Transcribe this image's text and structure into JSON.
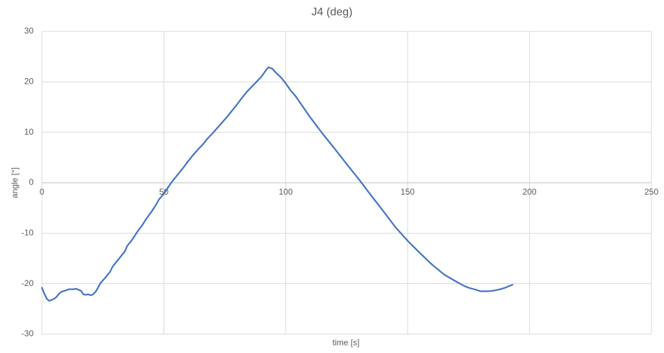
{
  "chart_data": {
    "type": "line",
    "title": "J4 (deg)",
    "x_label": "time [s]",
    "y_label": "angle [°]",
    "x": [
      0,
      1,
      2,
      3,
      5,
      6,
      7,
      8,
      10,
      11,
      13,
      14,
      15,
      16,
      17,
      18,
      19,
      20,
      21,
      22,
      23,
      24,
      26,
      28,
      29,
      30,
      32,
      34,
      35,
      37,
      39,
      41,
      43,
      45,
      47,
      48,
      50,
      53,
      56,
      58,
      60,
      62,
      64,
      66,
      68,
      70,
      72,
      74,
      76,
      78,
      80,
      82,
      84,
      86,
      88,
      90,
      92,
      93,
      94.5,
      96,
      98,
      100,
      102,
      104,
      106,
      108,
      110,
      115,
      120,
      125,
      130,
      135,
      140,
      145,
      150,
      155,
      160,
      165,
      170,
      173,
      175,
      178,
      180,
      183,
      185,
      188,
      190,
      193
    ],
    "values": [
      -20.8,
      -22,
      -23,
      -23.4,
      -23.0,
      -22.6,
      -22,
      -21.6,
      -21.3,
      -21.1,
      -21.1,
      -21.0,
      -21.2,
      -21.4,
      -22.1,
      -22.2,
      -22.1,
      -22.3,
      -22.1,
      -21.6,
      -20.8,
      -19.9,
      -18.8,
      -17.6,
      -16.6,
      -16.0,
      -14.8,
      -13.6,
      -12.5,
      -11.3,
      -9.8,
      -8.5,
      -7.0,
      -5.7,
      -4.2,
      -3.3,
      -2.2,
      0,
      1.8,
      3.0,
      4.3,
      5.5,
      6.6,
      7.6,
      8.8,
      9.8,
      10.9,
      12.0,
      13.1,
      14.3,
      15.5,
      16.8,
      18.0,
      19.0,
      20.0,
      21.0,
      22.4,
      22.9,
      22.6,
      21.8,
      20.9,
      19.7,
      18.3,
      17.2,
      15.8,
      14.4,
      13.0,
      9.8,
      6.8,
      3.7,
      0.7,
      -2.5,
      -5.6,
      -8.8,
      -11.5,
      -13.9,
      -16.2,
      -18.2,
      -19.6,
      -20.4,
      -20.8,
      -21.2,
      -21.5,
      -21.5,
      -21.4,
      -21.1,
      -20.8,
      -20.2
    ],
    "color": "#4472c4",
    "xlim": [
      0,
      250
    ],
    "xticks": [
      0,
      50,
      100,
      150,
      200,
      250
    ],
    "ylim": [
      -30,
      30
    ],
    "yticks": [
      -30,
      -20,
      -10,
      0,
      10,
      20,
      30
    ],
    "grid": true
  }
}
